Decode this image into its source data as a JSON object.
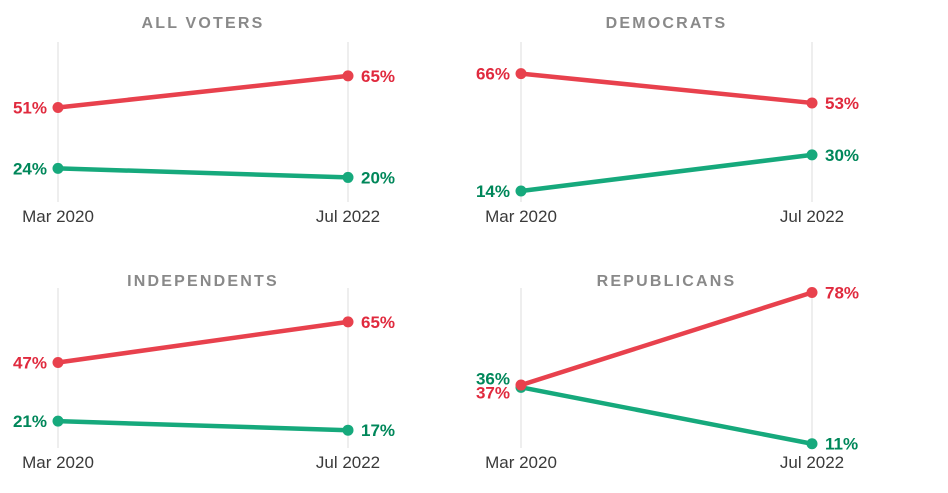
{
  "page": {
    "background": "#ffffff"
  },
  "styles": {
    "title_color": "#898989",
    "axis_label_color": "#3a3a3a",
    "gridline_color": "#dcdcdc",
    "red_line": "#e8414d",
    "red_label": "#e02a3e",
    "green_line": "#16a97c",
    "green_label": "#00875a"
  },
  "chart_data": [
    {
      "type": "line",
      "title": "ALL VOTERS",
      "x": [
        "Mar 2020",
        "Jul 2022"
      ],
      "ylim": [
        10,
        80
      ],
      "grid": "vertical-ticks-only",
      "legend": "none",
      "series": [
        {
          "name": "red",
          "line_color": "#e8414d",
          "label_color": "#e02a3e",
          "values": [
            51,
            65
          ],
          "labels": [
            "51%",
            "65%"
          ]
        },
        {
          "name": "green",
          "line_color": "#16a97c",
          "label_color": "#00875a",
          "values": [
            24,
            20
          ],
          "labels": [
            "24%",
            "20%"
          ]
        }
      ]
    },
    {
      "type": "line",
      "title": "DEMOCRATS",
      "x": [
        "Mar 2020",
        "Jul 2022"
      ],
      "ylim": [
        10,
        80
      ],
      "grid": "vertical-ticks-only",
      "legend": "none",
      "series": [
        {
          "name": "red",
          "line_color": "#e8414d",
          "label_color": "#e02a3e",
          "values": [
            66,
            53
          ],
          "labels": [
            "66%",
            "53%"
          ]
        },
        {
          "name": "green",
          "line_color": "#16a97c",
          "label_color": "#00875a",
          "values": [
            14,
            30
          ],
          "labels": [
            "14%",
            "30%"
          ]
        }
      ]
    },
    {
      "type": "line",
      "title": "INDEPENDENTS",
      "x": [
        "Mar 2020",
        "Jul 2022"
      ],
      "ylim": [
        10,
        80
      ],
      "grid": "vertical-ticks-only",
      "legend": "none",
      "series": [
        {
          "name": "red",
          "line_color": "#e8414d",
          "label_color": "#e02a3e",
          "values": [
            47,
            65
          ],
          "labels": [
            "47%",
            "65%"
          ]
        },
        {
          "name": "green",
          "line_color": "#16a97c",
          "label_color": "#00875a",
          "values": [
            21,
            17
          ],
          "labels": [
            "21%",
            "17%"
          ]
        }
      ]
    },
    {
      "type": "line",
      "title": "REPUBLICANS",
      "x": [
        "Mar 2020",
        "Jul 2022"
      ],
      "ylim": [
        10,
        80
      ],
      "grid": "vertical-ticks-only",
      "legend": "none",
      "series": [
        {
          "name": "red",
          "line_color": "#e8414d",
          "label_color": "#e02a3e",
          "values": [
            37,
            78
          ],
          "labels": [
            "37%",
            "78%"
          ]
        },
        {
          "name": "green",
          "line_color": "#16a97c",
          "label_color": "#00875a",
          "values": [
            36,
            11
          ],
          "labels": [
            "36%",
            "11%"
          ]
        }
      ]
    }
  ]
}
